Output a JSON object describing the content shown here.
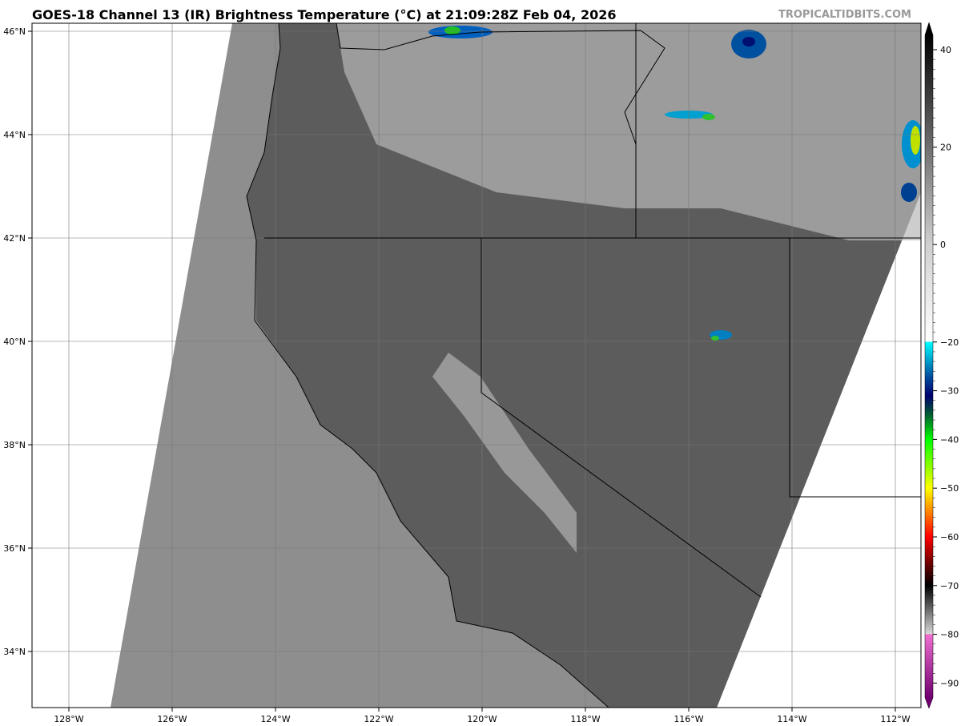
{
  "title": "GOES-18 Channel 13 (IR) Brightness Temperature (°C) at 21:09:28Z Feb 04, 2026",
  "watermark": "TROPICALTIDBITS.COM",
  "map": {
    "lon_ticks": [
      "128°W",
      "126°W",
      "124°W",
      "122°W",
      "120°W",
      "118°W",
      "116°W",
      "114°W",
      "112°W"
    ],
    "lon_values": [
      -128,
      -126,
      -124,
      -122,
      -120,
      -118,
      -116,
      -114,
      -112
    ],
    "lat_ticks": [
      "46°N",
      "44°N",
      "42°N",
      "40°N",
      "38°N",
      "36°N",
      "34°N"
    ],
    "lat_values": [
      46,
      44,
      42,
      40,
      38,
      36,
      34
    ],
    "ocean_color": "#8c8c8c",
    "land_color": "#5e5e5e"
  },
  "colorbar": {
    "ticks": [
      "40",
      "20",
      "0",
      "−20",
      "−30",
      "−40",
      "−50",
      "−60",
      "−70",
      "−80",
      "−90"
    ],
    "values": [
      40,
      20,
      0,
      -20,
      -30,
      -40,
      -50,
      -60,
      -70,
      -80,
      -90
    ],
    "range": [
      -93,
      43
    ],
    "stops": [
      {
        "v": 43,
        "c": "#000000"
      },
      {
        "v": 0,
        "c": "#d0d0d0"
      },
      {
        "v": -19.9,
        "c": "#ffffff"
      },
      {
        "v": -20,
        "c": "#00ffff"
      },
      {
        "v": -27,
        "c": "#0050a0"
      },
      {
        "v": -31,
        "c": "#000070"
      },
      {
        "v": -35,
        "c": "#006030"
      },
      {
        "v": -40,
        "c": "#00ff00"
      },
      {
        "v": -50,
        "c": "#ffff00"
      },
      {
        "v": -55,
        "c": "#ff8000"
      },
      {
        "v": -60,
        "c": "#ff0000"
      },
      {
        "v": -66,
        "c": "#600000"
      },
      {
        "v": -70,
        "c": "#000000"
      },
      {
        "v": -79.9,
        "c": "#d8d8d8"
      },
      {
        "v": -80,
        "c": "#f070d0"
      },
      {
        "v": -93,
        "c": "#700070"
      }
    ]
  }
}
